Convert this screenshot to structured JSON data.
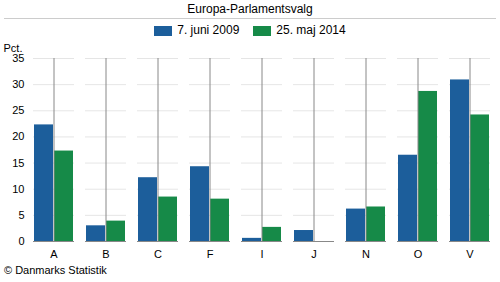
{
  "chart_data": {
    "type": "bar",
    "title": "Europa-Parlamentsvalg",
    "categories": [
      "A",
      "B",
      "C",
      "F",
      "I",
      "J",
      "N",
      "O",
      "V"
    ],
    "series": [
      {
        "name": "7. juni 2009",
        "color": "#1c5e9b",
        "values": [
          22.3,
          3.0,
          12.2,
          14.3,
          0.6,
          2.1,
          6.2,
          16.5,
          30.9
        ]
      },
      {
        "name": "25. maj 2014",
        "color": "#168a48",
        "values": [
          17.3,
          3.9,
          8.5,
          8.1,
          2.7,
          null,
          6.6,
          28.7,
          24.2
        ]
      }
    ],
    "y_label": "Pct.",
    "ylim": [
      0,
      35
    ],
    "yticks": [
      0,
      5,
      10,
      15,
      20,
      25,
      30,
      35
    ],
    "grid": true,
    "legend": "top",
    "caption": "© Danmarks Statistik"
  }
}
